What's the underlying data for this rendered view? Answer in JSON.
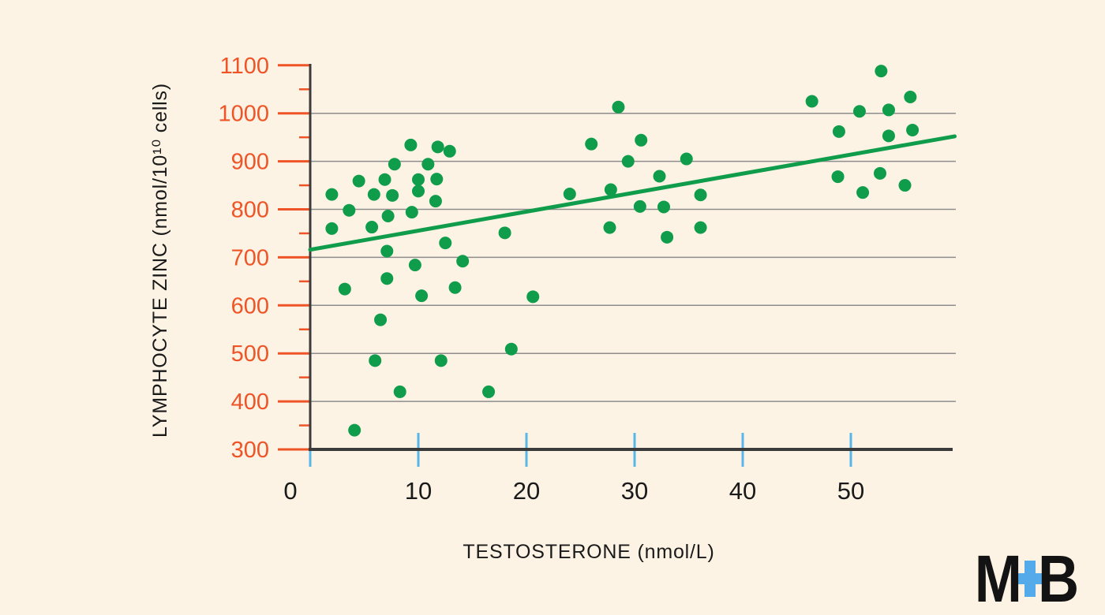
{
  "page": {
    "background_color": "#fdf3e5"
  },
  "chart_data": {
    "type": "scatter",
    "title": "",
    "xlabel": "TESTOSTERONE (nmol/L)",
    "ylabel": "LYMPHOCYTE ZINC (nmol/10¹⁰ cells)",
    "xlim": [
      0,
      59.6
    ],
    "ylim": [
      300,
      1100
    ],
    "x_ticks": [
      0,
      10,
      20,
      30,
      40,
      50
    ],
    "y_major_ticks": [
      1100,
      1000,
      900,
      800,
      700,
      600,
      500,
      400,
      300
    ],
    "y_minor_ticks": [
      1050,
      950,
      850,
      750,
      650,
      550,
      450,
      350
    ],
    "gridlines_at": [
      1000,
      900,
      800,
      700,
      600,
      500,
      400
    ],
    "grid": "horizontal",
    "legend": "none",
    "points": [
      [
        2.0,
        831
      ],
      [
        2.0,
        760
      ],
      [
        3.2,
        634
      ],
      [
        3.6,
        798
      ],
      [
        4.1,
        340
      ],
      [
        4.5,
        859
      ],
      [
        5.7,
        763
      ],
      [
        5.9,
        831
      ],
      [
        6.0,
        485
      ],
      [
        6.5,
        570
      ],
      [
        6.9,
        862
      ],
      [
        7.1,
        713
      ],
      [
        7.1,
        656
      ],
      [
        7.2,
        786
      ],
      [
        7.6,
        829
      ],
      [
        7.8,
        894
      ],
      [
        8.3,
        420
      ],
      [
        9.3,
        934
      ],
      [
        9.4,
        794
      ],
      [
        9.7,
        684
      ],
      [
        10.0,
        862
      ],
      [
        10.0,
        838
      ],
      [
        10.3,
        620
      ],
      [
        10.9,
        894
      ],
      [
        11.6,
        817
      ],
      [
        11.7,
        863
      ],
      [
        11.8,
        930
      ],
      [
        12.1,
        485
      ],
      [
        12.5,
        730
      ],
      [
        12.9,
        921
      ],
      [
        13.4,
        637
      ],
      [
        14.1,
        692
      ],
      [
        16.5,
        420
      ],
      [
        18.0,
        751
      ],
      [
        18.6,
        509
      ],
      [
        20.6,
        618
      ],
      [
        24.0,
        832
      ],
      [
        26.0,
        936
      ],
      [
        27.7,
        762
      ],
      [
        27.8,
        841
      ],
      [
        28.5,
        1013
      ],
      [
        29.4,
        900
      ],
      [
        30.5,
        806
      ],
      [
        30.6,
        944
      ],
      [
        32.3,
        869
      ],
      [
        32.7,
        805
      ],
      [
        33.0,
        742
      ],
      [
        34.8,
        905
      ],
      [
        36.1,
        830
      ],
      [
        36.1,
        762
      ],
      [
        46.4,
        1025
      ],
      [
        48.8,
        868
      ],
      [
        48.9,
        962
      ],
      [
        50.8,
        1004
      ],
      [
        51.1,
        835
      ],
      [
        52.7,
        875
      ],
      [
        52.8,
        1088
      ],
      [
        53.5,
        1007
      ],
      [
        53.5,
        953
      ],
      [
        55.0,
        850
      ],
      [
        55.5,
        1034
      ],
      [
        55.7,
        965
      ]
    ],
    "trend_line": {
      "x1": 0,
      "y1": 716,
      "x2": 59.6,
      "y2": 952
    },
    "colors": {
      "point_green": "#0f9d4b",
      "trend_green": "#0f9d4b",
      "tick_orange": "#ee5426",
      "tick_blue": "#58b7e8",
      "gridline_gray": "#8d8d8d",
      "axis_dark": "#3b3b3b",
      "text_black": "#1a1a1a"
    }
  },
  "logo": {
    "left_letter": "M",
    "right_letter": "B",
    "plus_icon": "medical-cross",
    "letter_color": "#131313",
    "plus_color": "#55aae9"
  }
}
